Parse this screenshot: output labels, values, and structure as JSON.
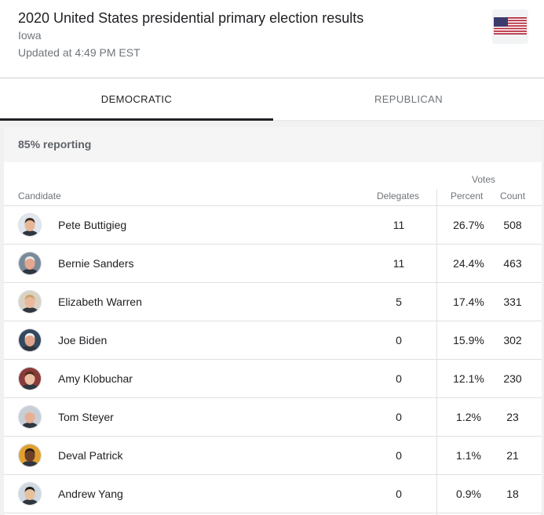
{
  "header": {
    "title": "2020 United States presidential primary election results",
    "state": "Iowa",
    "updated": "Updated at 4:49 PM EST",
    "flag_icon": "us-flag-icon"
  },
  "tabs": [
    {
      "label": "DEMOCRATIC",
      "active": true
    },
    {
      "label": "REPUBLICAN",
      "active": false
    }
  ],
  "results": {
    "reporting": "85% reporting",
    "columns": {
      "candidate": "Candidate",
      "delegates": "Delegates",
      "votes": "Votes",
      "percent": "Percent",
      "count": "Count"
    },
    "rows": [
      {
        "name": "Pete Buttigieg",
        "delegates": "11",
        "percent": "26.7%",
        "count": "508",
        "skin": "#e8b896",
        "hair": "#3a2a1e",
        "bg": "#dfe6ee"
      },
      {
        "name": "Bernie Sanders",
        "delegates": "11",
        "percent": "24.4%",
        "count": "463",
        "skin": "#e3a88f",
        "hair": "#e8e8e8",
        "bg": "#7a8a9a"
      },
      {
        "name": "Elizabeth Warren",
        "delegates": "5",
        "percent": "17.4%",
        "count": "331",
        "skin": "#eab99c",
        "hair": "#c9a36b",
        "bg": "#d9d2c4"
      },
      {
        "name": "Joe Biden",
        "delegates": "0",
        "percent": "15.9%",
        "count": "302",
        "skin": "#e1a48a",
        "hair": "#f0f0f0",
        "bg": "#34495e"
      },
      {
        "name": "Amy Klobuchar",
        "delegates": "0",
        "percent": "12.1%",
        "count": "230",
        "skin": "#ebbfa2",
        "hair": "#4a2e1d",
        "bg": "#8b3a3a"
      },
      {
        "name": "Tom Steyer",
        "delegates": "0",
        "percent": "1.2%",
        "count": "23",
        "skin": "#e6b095",
        "hair": "#cfcfcf",
        "bg": "#c8ced6"
      },
      {
        "name": "Deval Patrick",
        "delegates": "0",
        "percent": "1.1%",
        "count": "21",
        "skin": "#6b3f28",
        "hair": "#2b1b12",
        "bg": "#e0a030"
      },
      {
        "name": "Andrew Yang",
        "delegates": "0",
        "percent": "0.9%",
        "count": "18",
        "skin": "#e7c09c",
        "hair": "#1b1b1b",
        "bg": "#cfd8e0"
      }
    ]
  }
}
